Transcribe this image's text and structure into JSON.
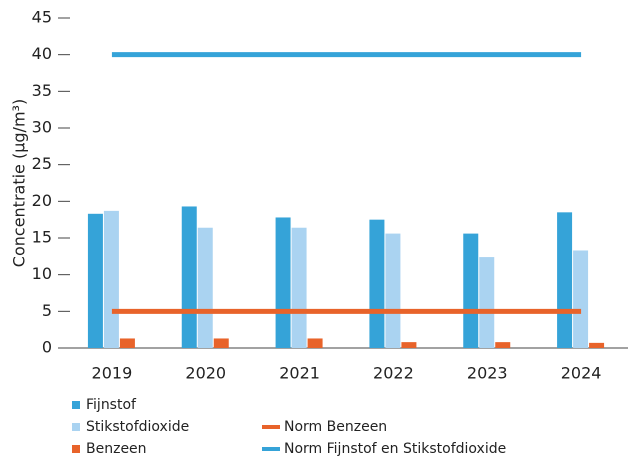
{
  "chart_data": {
    "type": "bar",
    "y_label": "Concentratie (µg/m³)",
    "categories": [
      "2019",
      "2020",
      "2021",
      "2022",
      "2023",
      "2024"
    ],
    "series": [
      {
        "name": "Fijnstof",
        "color": "#35a3d8",
        "type": "bar",
        "values": [
          18.3,
          19.3,
          17.8,
          17.5,
          15.6,
          18.5
        ]
      },
      {
        "name": "Stikstofdioxide",
        "color": "#aad3f1",
        "type": "bar",
        "values": [
          18.7,
          16.4,
          16.4,
          15.6,
          12.4,
          13.3
        ]
      },
      {
        "name": "Benzeen",
        "color": "#e8632a",
        "type": "bar",
        "values": [
          1.3,
          1.3,
          1.3,
          0.8,
          0.8,
          0.7
        ]
      },
      {
        "name": "Norm Benzeen",
        "color": "#e8632a",
        "type": "line",
        "values": [
          5,
          5,
          5,
          5,
          5,
          5
        ]
      },
      {
        "name": "Norm Fijnstof en Stikstofdioxide",
        "color": "#35a3d8",
        "type": "line",
        "values": [
          40,
          40,
          40,
          40,
          40,
          40
        ]
      }
    ],
    "ylim": [
      0,
      45
    ],
    "yticks": [
      0,
      5,
      10,
      15,
      20,
      25,
      30,
      35,
      40,
      45
    ],
    "grid": false
  }
}
